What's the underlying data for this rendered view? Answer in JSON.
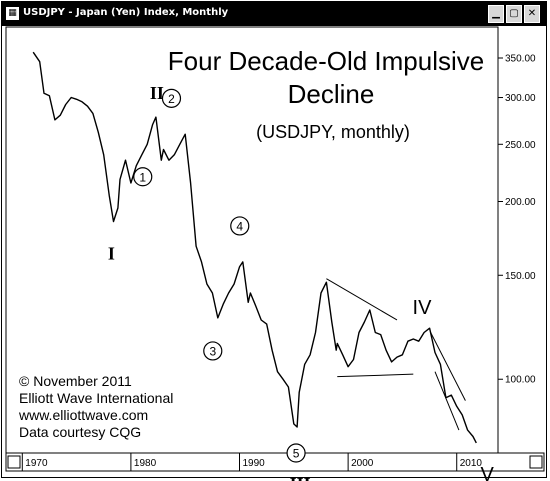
{
  "window": {
    "title": "USDJPY - Japan (Yen) Index, Monthly",
    "icon": "chart-window-icon",
    "buttons": [
      "minimize-icon",
      "maximize-icon",
      "close-icon"
    ]
  },
  "annotations": {
    "title_line1": "Four Decade-Old Impulsive",
    "title_line2": "Decline",
    "subtitle": "(USDJPY, monthly)",
    "credits": [
      "© November 2011",
      "Elliott Wave International",
      "www.elliottwave.com",
      "Data courtesy CQG"
    ]
  },
  "chart_data": {
    "type": "line",
    "title": "Four Decade-Old Impulsive Decline",
    "subtitle": "(USDJPY, monthly)",
    "y_scale": "log",
    "ylim": [
      75,
      395
    ],
    "xlim": [
      1968.5,
      2013.8
    ],
    "x_ticks": [
      {
        "value": 1970,
        "label": "1970"
      },
      {
        "value": 1980,
        "label": "1980"
      },
      {
        "value": 1990,
        "label": "1990"
      },
      {
        "value": 2000,
        "label": "2000"
      },
      {
        "value": 2010,
        "label": "2010"
      }
    ],
    "y_ticks": [
      {
        "value": 350,
        "label": "350.00"
      },
      {
        "value": 300,
        "label": "300.00"
      },
      {
        "value": 250,
        "label": "250.00"
      },
      {
        "value": 200,
        "label": "200.00"
      },
      {
        "value": 150,
        "label": "150.00"
      },
      {
        "value": 100,
        "label": "100.00"
      }
    ],
    "series": [
      {
        "x": [
          1971.0,
          1971.6,
          1972.0,
          1972.5,
          1973.0,
          1973.5,
          1974.0,
          1974.5,
          1975.0,
          1975.5,
          1976.0,
          1976.5,
          1977.0,
          1977.5,
          1978.0,
          1978.4,
          1978.8,
          1979.0,
          1979.5,
          1980.0,
          1980.5,
          1981.0,
          1981.5,
          1982.0,
          1982.3,
          1982.8,
          1983.0,
          1983.5,
          1984.0,
          1984.5,
          1985.0,
          1985.5,
          1986.0,
          1986.5,
          1987.0,
          1987.5,
          1988.0,
          1988.5,
          1989.0,
          1989.5,
          1990.0,
          1990.3,
          1990.8,
          1991.0,
          1991.5,
          1992.0,
          1992.5,
          1993.0,
          1993.5,
          1994.0,
          1994.5,
          1995.0,
          1995.3,
          1995.5,
          1996.0,
          1996.5,
          1997.0,
          1997.5,
          1998.0,
          1998.5,
          1998.9,
          1999.0,
          1999.5,
          2000.0,
          2000.5,
          2001.0,
          2001.5,
          2002.0,
          2002.5,
          2003.0,
          2003.5,
          2004.0,
          2004.5,
          2005.0,
          2005.5,
          2006.0,
          2006.5,
          2007.0,
          2007.5,
          2008.0,
          2008.5,
          2009.0,
          2009.5,
          2010.0,
          2010.5,
          2011.0,
          2011.5,
          2011.8
        ],
        "y": [
          358,
          345,
          305,
          302,
          275,
          280,
          292,
          300,
          298,
          295,
          290,
          282,
          262,
          240,
          205,
          185,
          195,
          218,
          235,
          215,
          230,
          240,
          250,
          270,
          278,
          235,
          245,
          235,
          240,
          250,
          260,
          215,
          168,
          158,
          145,
          140,
          127,
          134,
          140,
          145,
          155,
          158,
          135,
          140,
          133,
          126,
          124,
          112,
          103,
          100,
          97,
          84,
          83,
          95,
          106,
          110,
          120,
          140,
          146,
          125,
          112,
          115,
          110,
          105,
          108,
          120,
          125,
          131,
          120,
          119,
          112,
          107,
          109,
          110,
          116,
          117,
          116,
          120,
          122,
          111,
          106,
          93,
          94,
          90,
          87,
          82,
          80,
          78
        ]
      }
    ],
    "wave_labels": [
      {
        "label": "I",
        "x": 1978.3,
        "y": 185
      },
      {
        "label": "II",
        "x": 1982.3,
        "y": 278
      },
      {
        "label": "III",
        "x": 1995.3,
        "y": 83
      },
      {
        "label": "IV",
        "x": 2006.8,
        "y": 124
      },
      {
        "label": "V",
        "x": 2011.7,
        "y": 78
      }
    ],
    "subwave_labels": [
      {
        "label": "1",
        "x": 1981.0,
        "y": 240
      },
      {
        "label": "2",
        "x": 1983.0,
        "y": 265
      },
      {
        "label": "3",
        "x": 1988.0,
        "y": 127
      },
      {
        "label": "4",
        "x": 1990.3,
        "y": 158
      },
      {
        "label": "5",
        "x": 1995.3,
        "y": 83
      }
    ],
    "trendlines": [
      {
        "from": {
          "x": 1998.0,
          "y": 148
        },
        "to": {
          "x": 2004.5,
          "y": 126
        }
      },
      {
        "from": {
          "x": 1999.0,
          "y": 101
        },
        "to": {
          "x": 2006.0,
          "y": 102
        }
      },
      {
        "from": {
          "x": 2007.6,
          "y": 120
        },
        "to": {
          "x": 2010.8,
          "y": 92
        }
      },
      {
        "from": {
          "x": 2008.0,
          "y": 103
        },
        "to": {
          "x": 2010.2,
          "y": 82
        }
      }
    ]
  }
}
